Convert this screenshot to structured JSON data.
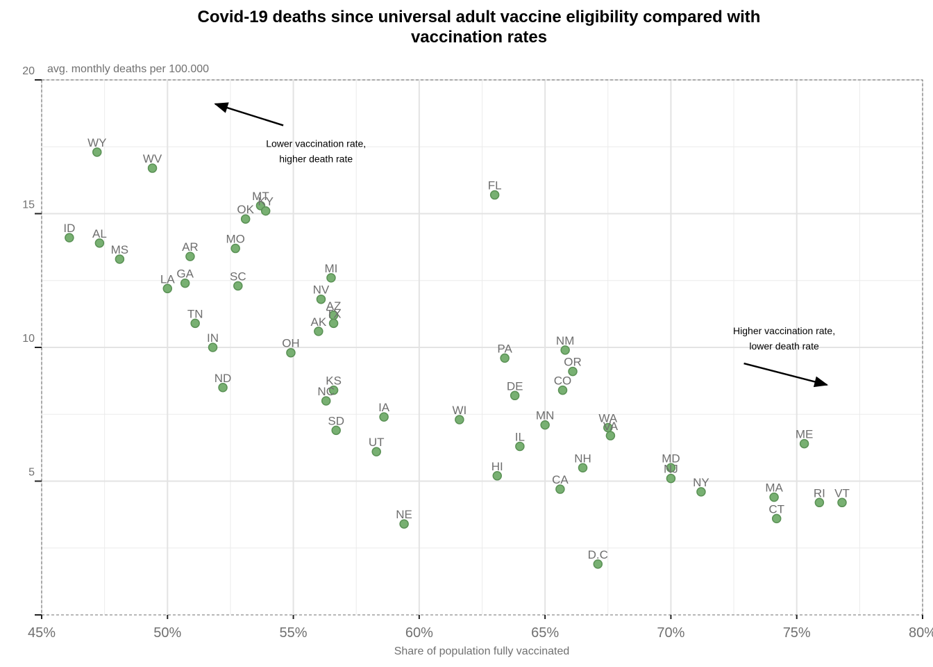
{
  "chart_data": {
    "type": "scatter",
    "title_line1": "Covid-19 deaths since universal adult vaccine eligibility compared with",
    "title_line2": "vaccination rates",
    "xlabel": "Share of population fully vaccinated",
    "ylabel": "avg. monthly deaths per 100.000",
    "xlim": [
      45,
      80
    ],
    "ylim": [
      0,
      20
    ],
    "x_ticks": [
      45,
      50,
      55,
      60,
      65,
      70,
      75,
      80
    ],
    "x_tick_labels": [
      "45%",
      "50%",
      "55%",
      "60%",
      "65%",
      "70%",
      "75%",
      "80%"
    ],
    "y_ticks": [
      5,
      10,
      15,
      20
    ],
    "y_tick_labels": [
      "5",
      "10",
      "15",
      "20"
    ],
    "grid": true,
    "point_color": "#78b072",
    "point_edge_color": "#5a9155",
    "label_color": "#6e6e6e",
    "points": [
      {
        "label": "WY",
        "x": 47.2,
        "y": 17.3
      },
      {
        "label": "WV",
        "x": 49.4,
        "y": 16.7
      },
      {
        "label": "ID",
        "x": 46.1,
        "y": 14.1
      },
      {
        "label": "AL",
        "x": 47.3,
        "y": 13.9
      },
      {
        "label": "MS",
        "x": 48.1,
        "y": 13.3
      },
      {
        "label": "AR",
        "x": 50.9,
        "y": 13.4
      },
      {
        "label": "MO",
        "x": 52.7,
        "y": 13.7
      },
      {
        "label": "OK",
        "x": 53.1,
        "y": 14.8
      },
      {
        "label": "MT",
        "x": 53.7,
        "y": 15.3
      },
      {
        "label": "KY",
        "x": 53.9,
        "y": 15.1
      },
      {
        "label": "LA",
        "x": 50.0,
        "y": 12.2
      },
      {
        "label": "GA",
        "x": 50.7,
        "y": 12.4
      },
      {
        "label": "SC",
        "x": 52.8,
        "y": 12.3
      },
      {
        "label": "TN",
        "x": 51.1,
        "y": 10.9
      },
      {
        "label": "IN",
        "x": 51.8,
        "y": 10.0
      },
      {
        "label": "ND",
        "x": 52.2,
        "y": 8.5
      },
      {
        "label": "OH",
        "x": 54.9,
        "y": 9.8
      },
      {
        "label": "MI",
        "x": 56.5,
        "y": 12.6
      },
      {
        "label": "NV",
        "x": 56.1,
        "y": 11.8
      },
      {
        "label": "AZ",
        "x": 56.6,
        "y": 11.2
      },
      {
        "label": "TX",
        "x": 56.6,
        "y": 10.9
      },
      {
        "label": "AK",
        "x": 56.0,
        "y": 10.6
      },
      {
        "label": "KS",
        "x": 56.6,
        "y": 8.4
      },
      {
        "label": "NC",
        "x": 56.3,
        "y": 8.0
      },
      {
        "label": "SD",
        "x": 56.7,
        "y": 6.9
      },
      {
        "label": "UT",
        "x": 58.3,
        "y": 6.1
      },
      {
        "label": "IA",
        "x": 58.6,
        "y": 7.4
      },
      {
        "label": "NE",
        "x": 59.4,
        "y": 3.4
      },
      {
        "label": "WI",
        "x": 61.6,
        "y": 7.3
      },
      {
        "label": "FL",
        "x": 63.0,
        "y": 15.7
      },
      {
        "label": "PA",
        "x": 63.4,
        "y": 9.6
      },
      {
        "label": "DE",
        "x": 63.8,
        "y": 8.2
      },
      {
        "label": "HI",
        "x": 63.1,
        "y": 5.2
      },
      {
        "label": "IL",
        "x": 64.0,
        "y": 6.3
      },
      {
        "label": "MN",
        "x": 65.0,
        "y": 7.1
      },
      {
        "label": "NM",
        "x": 65.8,
        "y": 9.9
      },
      {
        "label": "OR",
        "x": 66.1,
        "y": 9.1
      },
      {
        "label": "CO",
        "x": 65.7,
        "y": 8.4
      },
      {
        "label": "CA",
        "x": 65.6,
        "y": 4.7
      },
      {
        "label": "NH",
        "x": 66.5,
        "y": 5.5
      },
      {
        "label": "D.C",
        "x": 67.1,
        "y": 1.9
      },
      {
        "label": "WA",
        "x": 67.5,
        "y": 7.0
      },
      {
        "label": "VA",
        "x": 67.6,
        "y": 6.7
      },
      {
        "label": "MD",
        "x": 70.0,
        "y": 5.5
      },
      {
        "label": "NJ",
        "x": 70.0,
        "y": 5.1
      },
      {
        "label": "NY",
        "x": 71.2,
        "y": 4.6
      },
      {
        "label": "MA",
        "x": 74.1,
        "y": 4.4
      },
      {
        "label": "CT",
        "x": 74.2,
        "y": 3.6
      },
      {
        "label": "ME",
        "x": 75.3,
        "y": 6.4
      },
      {
        "label": "RI",
        "x": 75.9,
        "y": 4.2
      },
      {
        "label": "VT",
        "x": 76.8,
        "y": 4.2
      }
    ],
    "annotations": [
      {
        "name": "annotation-lower-vaccination",
        "line1": "Lower vaccination rate,",
        "line2": "higher death rate",
        "text_x": 55.9,
        "text_y": 17.5,
        "arrow_from": [
          54.6,
          18.3
        ],
        "arrow_to": [
          51.9,
          19.1
        ]
      },
      {
        "name": "annotation-higher-vaccination",
        "line1": "Higher vaccination rate,",
        "line2": "lower death rate",
        "text_x": 74.5,
        "text_y": 10.5,
        "arrow_from": [
          72.9,
          9.4
        ],
        "arrow_to": [
          76.2,
          8.6
        ]
      }
    ]
  }
}
